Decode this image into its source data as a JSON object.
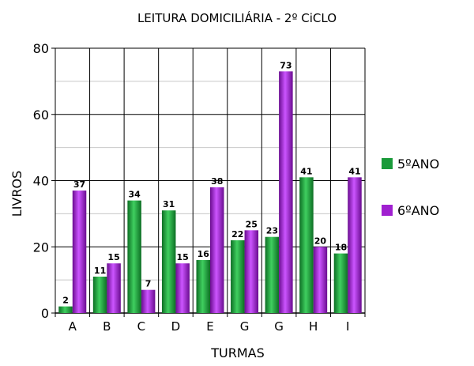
{
  "chart_data": {
    "type": "bar",
    "title": "LEITURA DOMICILIÁRIA - 2º CiCLO",
    "xlabel": "TURMAS",
    "ylabel": "LIVROS",
    "categories": [
      "A",
      "B",
      "C",
      "D",
      "E",
      "G",
      "G",
      "H",
      "I"
    ],
    "series": [
      {
        "name": "5ºANO",
        "values": [
          2,
          11,
          34,
          31,
          16,
          22,
          23,
          41,
          18
        ],
        "color": "#1a9a3a"
      },
      {
        "name": "6ºANO",
        "values": [
          37,
          15,
          7,
          15,
          38,
          25,
          73,
          20,
          41
        ],
        "color": "#a020d0"
      }
    ],
    "ylim": [
      0,
      80
    ],
    "yticks": [
      0,
      20,
      40,
      60,
      80
    ],
    "grid": true,
    "legend": "right"
  }
}
